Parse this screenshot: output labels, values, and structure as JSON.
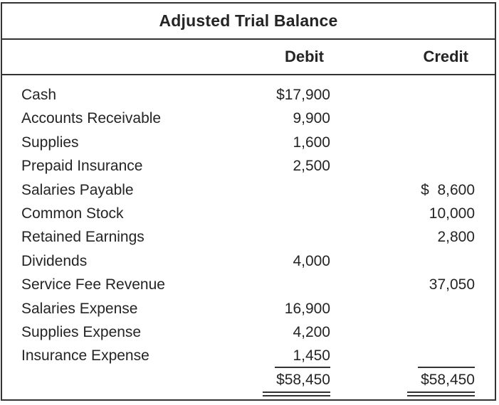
{
  "title": "Adjusted Trial Balance",
  "columns": {
    "debit": "Debit",
    "credit": "Credit"
  },
  "rows": [
    {
      "account": "Cash",
      "debit": "$17,900",
      "credit": ""
    },
    {
      "account": "Accounts Receivable",
      "debit": "9,900",
      "credit": ""
    },
    {
      "account": "Supplies",
      "debit": "1,600",
      "credit": ""
    },
    {
      "account": "Prepaid Insurance",
      "debit": "2,500",
      "credit": ""
    },
    {
      "account": "Salaries Payable",
      "debit": "",
      "credit": "$  8,600"
    },
    {
      "account": "Common Stock",
      "debit": "",
      "credit": "10,000"
    },
    {
      "account": "Retained Earnings",
      "debit": "",
      "credit": "2,800"
    },
    {
      "account": "Dividends",
      "debit": "4,000",
      "credit": ""
    },
    {
      "account": "Service Fee Revenue",
      "debit": "",
      "credit": "37,050"
    },
    {
      "account": "Salaries Expense",
      "debit": "16,900",
      "credit": ""
    },
    {
      "account": "Supplies Expense",
      "debit": "4,200",
      "credit": ""
    },
    {
      "account": "Insurance Expense",
      "debit": "1,450",
      "credit": ""
    }
  ],
  "totals": {
    "debit": "$58,450",
    "credit": "$58,450"
  },
  "colors": {
    "border": "#333333",
    "text": "#242424"
  }
}
